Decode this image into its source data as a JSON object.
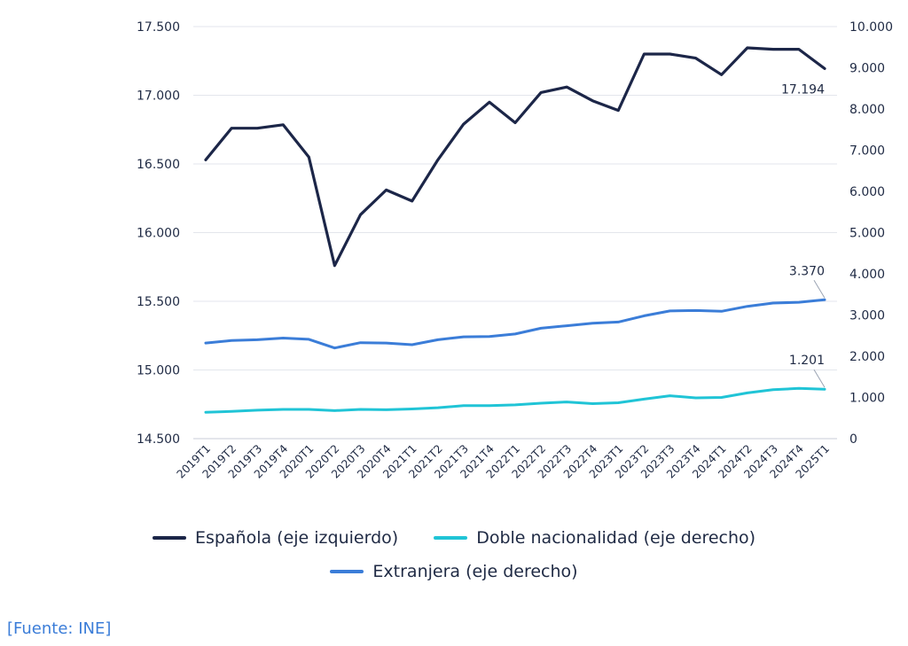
{
  "chart_data": {
    "type": "line",
    "categories": [
      "2019T1",
      "2019T2",
      "2019T3",
      "2019T4",
      "2020T1",
      "2020T2",
      "2020T3",
      "2020T4",
      "2021T1",
      "2021T2",
      "2021T3",
      "2021T4",
      "2022T1",
      "2022T2",
      "2022T3",
      "2022T4",
      "2023T1",
      "2023T2",
      "2023T3",
      "2023T4",
      "2024T1",
      "2024T2",
      "2024T3",
      "2024T4",
      "2025T1"
    ],
    "left_axis": {
      "ticks": [
        "17.500",
        "17.000",
        "16.500",
        "16.000",
        "15.500",
        "15.000",
        "14.500"
      ],
      "ylim": [
        14500,
        17500
      ]
    },
    "right_axis": {
      "ticks": [
        "10.000",
        "9.000",
        "8.000",
        "7.000",
        "6.000",
        "5.000",
        "4.000",
        "3.000",
        "2.000",
        "1.000",
        "0"
      ],
      "ylim": [
        0,
        10000
      ]
    },
    "series": [
      {
        "name": "Española (eje izquierdo)",
        "axis": "left",
        "color": "#1c2648",
        "values": [
          16530,
          16760,
          16760,
          16785,
          16550,
          15760,
          16130,
          16310,
          16230,
          16530,
          16790,
          16950,
          16800,
          17020,
          17060,
          16960,
          16890,
          17300,
          17300,
          17270,
          17150,
          17345,
          17335,
          17335,
          17194
        ],
        "end_label": "17.194"
      },
      {
        "name": "Doble nacionalidad (eje derecho)",
        "axis": "right",
        "color": "#20c4d6",
        "values": [
          640,
          660,
          690,
          710,
          710,
          680,
          710,
          700,
          720,
          750,
          800,
          800,
          820,
          860,
          890,
          850,
          870,
          960,
          1040,
          990,
          1000,
          1110,
          1190,
          1220,
          1201
        ],
        "end_label": "1.201"
      },
      {
        "name": "Extranjera (eje derecho)",
        "axis": "right",
        "color": "#3b7dd8",
        "values": [
          2320,
          2380,
          2400,
          2440,
          2410,
          2200,
          2330,
          2320,
          2280,
          2400,
          2470,
          2480,
          2540,
          2680,
          2740,
          2800,
          2830,
          2980,
          3100,
          3110,
          3090,
          3210,
          3290,
          3310,
          3370
        ],
        "end_label": "3.370"
      }
    ],
    "legend": [
      {
        "label": "Española (eje izquierdo)",
        "color": "#1c2648"
      },
      {
        "label": "Doble nacionalidad (eje derecho)",
        "color": "#20c4d6"
      },
      {
        "label": "Extranjera (eje derecho)",
        "color": "#3b7dd8"
      }
    ],
    "legend_position": "bottom",
    "grid": true
  },
  "source_note": "[Fuente: INE]"
}
